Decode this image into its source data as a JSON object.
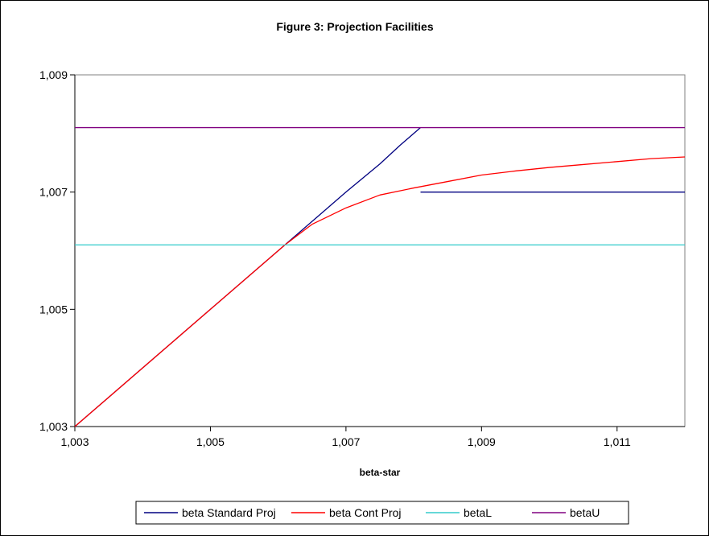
{
  "chart_data": {
    "type": "line",
    "title": "Figure 3: Projection Facilities",
    "xlabel": "beta-star",
    "ylabel": "",
    "xlim": [
      1.003,
      1.012
    ],
    "ylim": [
      1.003,
      1.009
    ],
    "x_ticks": [
      1.003,
      1.005,
      1.007,
      1.009,
      1.011
    ],
    "x_tick_labels": [
      "1,003",
      "1,005",
      "1,007",
      "1,009",
      "1,011"
    ],
    "y_ticks": [
      1.003,
      1.005,
      1.007,
      1.009
    ],
    "y_tick_labels": [
      "1,003",
      "1,005",
      "1,007",
      "1,009"
    ],
    "grid": false,
    "legend_position": "bottom",
    "series": [
      {
        "name": "beta Standard Proj",
        "color": "#000080",
        "segments": [
          [
            [
              1.003,
              1.003
            ],
            [
              1.0061,
              1.0061
            ],
            [
              1.0065,
              1.0065
            ],
            [
              1.007,
              1.007
            ],
            [
              1.0075,
              1.00748
            ],
            [
              1.0078,
              1.0078
            ],
            [
              1.0081,
              1.0081
            ]
          ],
          [
            [
              1.0081,
              1.007
            ],
            [
              1.012,
              1.007
            ]
          ]
        ]
      },
      {
        "name": "beta Cont Proj",
        "color": "#ff0000",
        "segments": [
          [
            [
              1.003,
              1.003
            ],
            [
              1.0061,
              1.0061
            ],
            [
              1.0065,
              1.00645
            ],
            [
              1.007,
              1.00673
            ],
            [
              1.0075,
              1.00695
            ],
            [
              1.008,
              1.00707
            ],
            [
              1.0085,
              1.00718
            ],
            [
              1.009,
              1.00729
            ],
            [
              1.0095,
              1.00736
            ],
            [
              1.01,
              1.00742
            ],
            [
              1.0105,
              1.00747
            ],
            [
              1.011,
              1.00752
            ],
            [
              1.0115,
              1.00757
            ],
            [
              1.012,
              1.0076
            ]
          ]
        ]
      },
      {
        "name": "betaL",
        "color": "#33cccc",
        "segments": [
          [
            [
              1.003,
              1.0061
            ],
            [
              1.012,
              1.0061
            ]
          ]
        ]
      },
      {
        "name": "betaU",
        "color": "#800080",
        "segments": [
          [
            [
              1.003,
              1.0081
            ],
            [
              1.012,
              1.0081
            ]
          ]
        ]
      }
    ]
  }
}
